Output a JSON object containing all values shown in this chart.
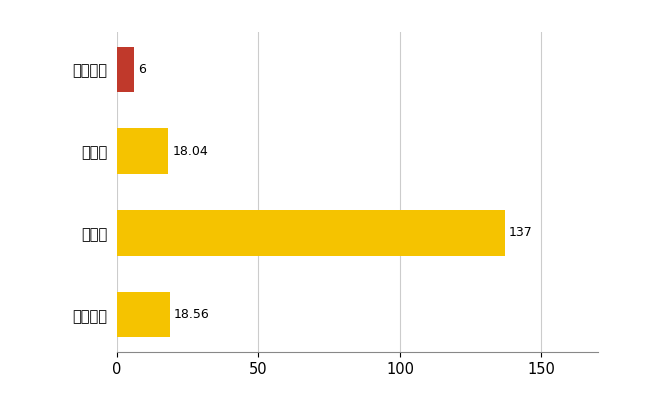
{
  "categories": [
    "全国平均",
    "県最大",
    "県平均",
    "えびの市"
  ],
  "values": [
    18.56,
    137,
    18.04,
    6
  ],
  "colors": [
    "#F5C300",
    "#F5C300",
    "#F5C300",
    "#C0392B"
  ],
  "value_labels": [
    "18.56",
    "137",
    "18.04",
    "6"
  ],
  "xlim": [
    0,
    170
  ],
  "xticks": [
    0,
    50,
    100,
    150
  ],
  "bar_height": 0.55,
  "background_color": "#FFFFFF",
  "grid_color": "#CCCCCC",
  "label_fontsize": 10.5,
  "value_fontsize": 9
}
